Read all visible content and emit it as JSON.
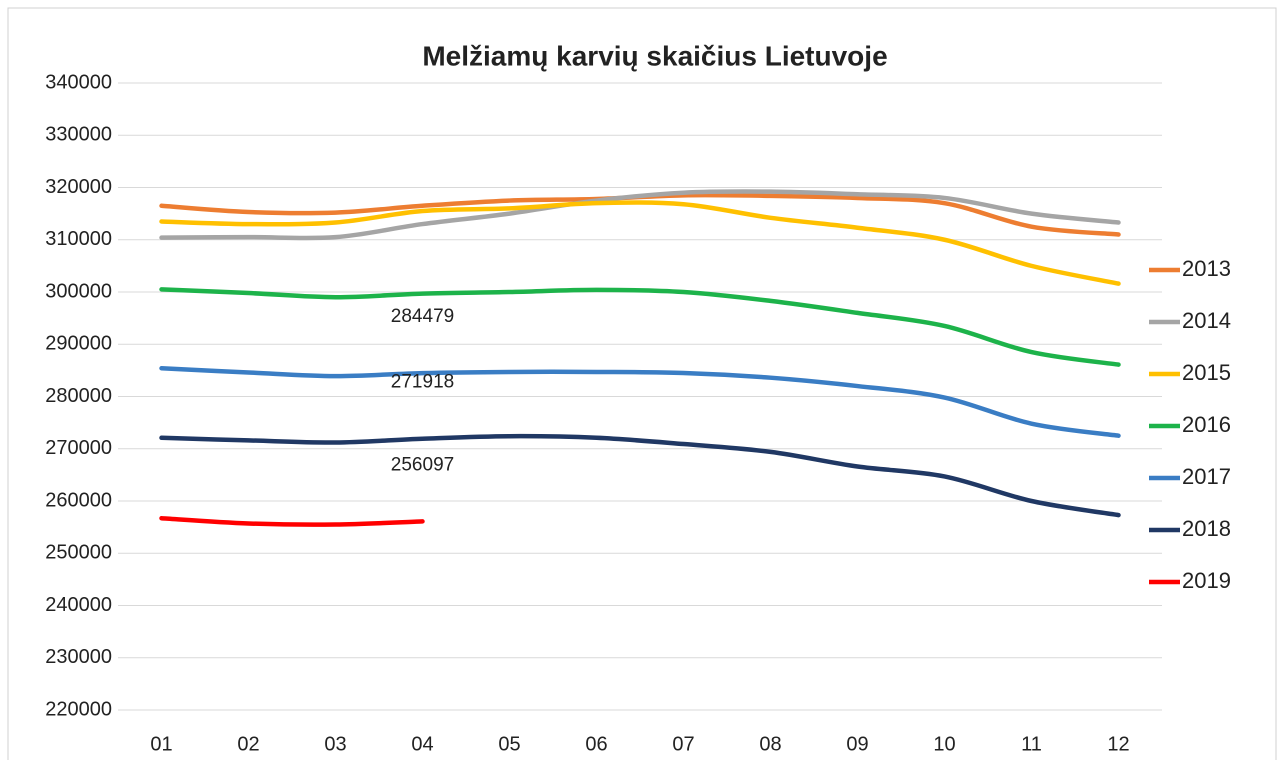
{
  "chart_data": {
    "type": "line",
    "title": "Melžiamų karvių skaičius Lietuvoje",
    "categories": [
      "01",
      "02",
      "03",
      "04",
      "05",
      "06",
      "07",
      "08",
      "09",
      "10",
      "11",
      "12"
    ],
    "ylim": [
      220000,
      340000
    ],
    "yticks": [
      220000,
      230000,
      240000,
      250000,
      260000,
      270000,
      280000,
      290000,
      300000,
      310000,
      320000,
      330000,
      340000
    ],
    "grid": true,
    "legend": "right",
    "series": [
      {
        "name": "2013",
        "color": "#ed7d31",
        "values": [
          316500,
          315300,
          315200,
          316500,
          317500,
          317800,
          318500,
          318400,
          318000,
          317000,
          312500,
          311000
        ]
      },
      {
        "name": "2014",
        "color": "#a5a5a5",
        "values": [
          310400,
          310500,
          310500,
          313000,
          315000,
          317500,
          319000,
          319200,
          318700,
          318000,
          315000,
          313300
        ]
      },
      {
        "name": "2015",
        "color": "#ffc000",
        "values": [
          313500,
          313000,
          313300,
          315500,
          316000,
          317000,
          316800,
          314200,
          312300,
          310000,
          305000,
          301600
        ]
      },
      {
        "name": "2016",
        "color": "#1db34a",
        "values": [
          300500,
          299800,
          299000,
          299700,
          300000,
          300400,
          300000,
          298300,
          296000,
          293500,
          288500,
          286100
        ]
      },
      {
        "name": "2017",
        "color": "#3a7dc4",
        "label_index": 3,
        "values": [
          285400,
          284600,
          283900,
          284479,
          284700,
          284700,
          284500,
          283600,
          282000,
          279800,
          274800,
          272500
        ]
      },
      {
        "name": "2018",
        "color": "#203864",
        "label_index": 3,
        "values": [
          272100,
          271600,
          271200,
          271918,
          272400,
          272100,
          270900,
          269400,
          266600,
          264700,
          260000,
          257300
        ]
      },
      {
        "name": "2019",
        "color": "#ff0000",
        "label_index": 3,
        "values": [
          256700,
          255700,
          255500,
          256097,
          null,
          null,
          null,
          null,
          null,
          null,
          null,
          null
        ]
      }
    ]
  }
}
